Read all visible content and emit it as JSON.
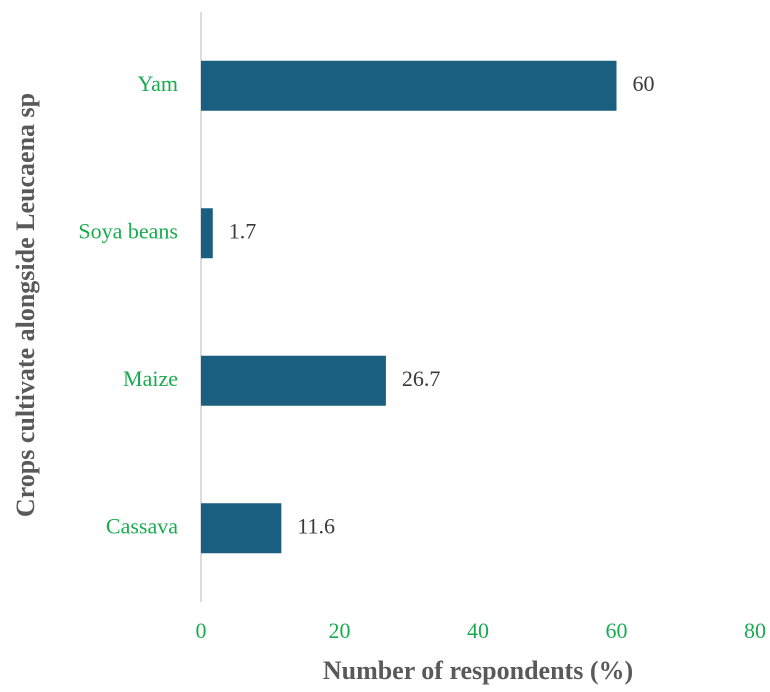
{
  "chart_data": {
    "type": "bar",
    "orientation": "horizontal",
    "categories": [
      "Yam",
      "Soya beans",
      "Maize",
      "Cassava"
    ],
    "values": [
      60,
      1.7,
      26.7,
      11.6
    ],
    "color": "#1a5e80",
    "xlabel": "Number of respondents (%)",
    "ylabel": "Crops cultivate alongside Leucaena sp",
    "xlim": [
      0,
      80
    ],
    "xticks": [
      0,
      20,
      40,
      60,
      80
    ],
    "grid": false
  }
}
